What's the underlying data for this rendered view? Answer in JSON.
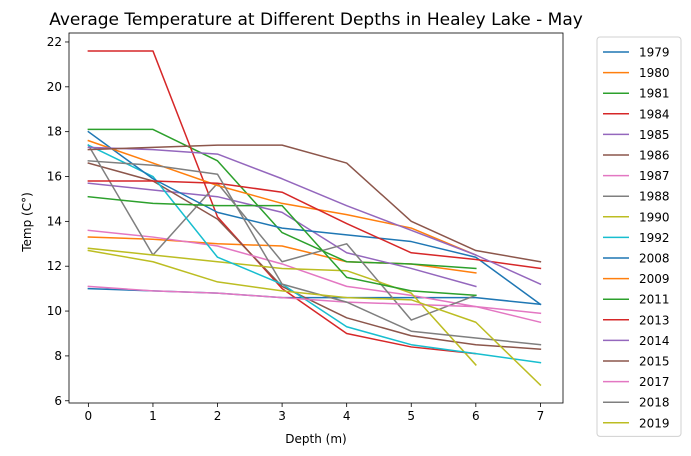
{
  "chart_data": {
    "type": "line",
    "title": "Average Temperature at Different Depths in Healey Lake - May",
    "xlabel": "Depth (m)",
    "ylabel": "Temp (C°)",
    "xlim": [
      -0.3,
      7.35
    ],
    "ylim": [
      5.9,
      22.4
    ],
    "xticks": [
      0,
      1,
      2,
      3,
      4,
      5,
      6,
      7
    ],
    "yticks": [
      6,
      8,
      10,
      12,
      14,
      16,
      18,
      20,
      22
    ],
    "grid": false,
    "legend_position": "outside-right",
    "series": [
      {
        "name": "1979",
        "color": "#1f77b4",
        "x": [
          0,
          1,
          2,
          3,
          4,
          5,
          6,
          7
        ],
        "y": [
          11.0,
          10.9,
          10.8,
          10.6,
          10.6,
          10.6,
          10.6,
          10.3
        ]
      },
      {
        "name": "1980",
        "color": "#ff7f0e",
        "x": [
          0,
          1,
          2,
          3,
          4,
          5,
          6
        ],
        "y": [
          13.3,
          13.2,
          13.0,
          12.9,
          12.2,
          12.1,
          11.7
        ]
      },
      {
        "name": "1981",
        "color": "#2ca02c",
        "x": [
          0,
          1,
          2,
          3,
          4,
          5,
          6
        ],
        "y": [
          18.1,
          18.1,
          16.7,
          13.5,
          12.2,
          12.1,
          11.9
        ]
      },
      {
        "name": "1984",
        "color": "#d62728",
        "x": [
          0,
          1,
          2,
          3,
          4,
          5,
          6
        ],
        "y": [
          21.6,
          21.6,
          14.2,
          11.0,
          9.0,
          8.4,
          8.1
        ]
      },
      {
        "name": "1985",
        "color": "#9467bd",
        "x": [
          0,
          1,
          2,
          3,
          4,
          5,
          6
        ],
        "y": [
          15.7,
          15.4,
          15.1,
          14.4,
          12.6,
          11.9,
          11.1
        ]
      },
      {
        "name": "1986",
        "color": "#8c564b",
        "x": [
          0,
          1,
          2,
          3,
          4,
          5,
          6,
          7
        ],
        "y": [
          16.6,
          15.8,
          14.1,
          11.1,
          9.7,
          8.9,
          8.5,
          8.3
        ]
      },
      {
        "name": "1987",
        "color": "#e377c2",
        "x": [
          0,
          1,
          2,
          3,
          4,
          5,
          6,
          7
        ],
        "y": [
          13.6,
          13.3,
          12.9,
          12.1,
          11.1,
          10.7,
          10.2,
          9.5
        ]
      },
      {
        "name": "1988",
        "color": "#7f7f7f",
        "x": [
          0,
          1,
          2,
          3,
          4,
          5,
          6
        ],
        "y": [
          17.4,
          12.5,
          15.7,
          12.2,
          13.0,
          9.6,
          10.7
        ]
      },
      {
        "name": "1990",
        "color": "#bcbd22",
        "x": [
          0,
          1,
          2,
          3,
          4,
          5,
          6
        ],
        "y": [
          12.8,
          12.5,
          12.2,
          11.9,
          11.8,
          10.8,
          7.6
        ]
      },
      {
        "name": "1992",
        "color": "#17becf",
        "x": [
          0,
          1,
          2,
          3,
          4,
          5,
          6,
          7
        ],
        "y": [
          17.4,
          16.0,
          12.4,
          11.2,
          9.3,
          8.5,
          8.1,
          7.7
        ]
      },
      {
        "name": "2008",
        "color": "#1f77b4",
        "x": [
          0,
          1,
          2,
          3,
          4,
          5,
          6,
          7
        ],
        "y": [
          18.0,
          15.9,
          14.4,
          13.7,
          13.4,
          13.1,
          12.4,
          10.3
        ]
      },
      {
        "name": "2009",
        "color": "#ff7f0e",
        "x": [
          0,
          1,
          2,
          3,
          4,
          5,
          6
        ],
        "y": [
          17.6,
          16.6,
          15.6,
          14.8,
          14.3,
          13.7,
          12.5
        ]
      },
      {
        "name": "2011",
        "color": "#2ca02c",
        "x": [
          0,
          1,
          2,
          3,
          4,
          5,
          6
        ],
        "y": [
          15.1,
          14.8,
          14.7,
          14.7,
          11.5,
          10.9,
          10.7
        ]
      },
      {
        "name": "2013",
        "color": "#d62728",
        "x": [
          0,
          1,
          2,
          3,
          4,
          5,
          6,
          7
        ],
        "y": [
          15.8,
          15.8,
          15.7,
          15.3,
          13.9,
          12.6,
          12.3,
          11.9
        ]
      },
      {
        "name": "2014",
        "color": "#9467bd",
        "x": [
          0,
          1,
          2,
          3,
          4,
          5,
          6,
          7
        ],
        "y": [
          17.3,
          17.2,
          17.0,
          15.9,
          14.7,
          13.6,
          12.5,
          11.2
        ]
      },
      {
        "name": "2015",
        "color": "#8c564b",
        "x": [
          0,
          1,
          2,
          3,
          4,
          5,
          6,
          7
        ],
        "y": [
          17.2,
          17.3,
          17.4,
          17.4,
          16.6,
          14.0,
          12.7,
          12.2
        ]
      },
      {
        "name": "2017",
        "color": "#e377c2",
        "x": [
          0,
          1,
          2,
          3,
          4,
          5,
          6,
          7
        ],
        "y": [
          11.1,
          10.9,
          10.8,
          10.6,
          10.4,
          10.3,
          10.2,
          9.9
        ]
      },
      {
        "name": "2018",
        "color": "#7f7f7f",
        "x": [
          0,
          1,
          2,
          3,
          4,
          5,
          6,
          7
        ],
        "y": [
          16.7,
          16.5,
          16.1,
          11.2,
          10.4,
          9.1,
          8.8,
          8.5
        ]
      },
      {
        "name": "2019",
        "color": "#bcbd22",
        "x": [
          0,
          1,
          2,
          3,
          4,
          5,
          6,
          7
        ],
        "y": [
          12.7,
          12.2,
          11.3,
          10.9,
          10.6,
          10.5,
          9.5,
          6.7
        ]
      }
    ]
  }
}
